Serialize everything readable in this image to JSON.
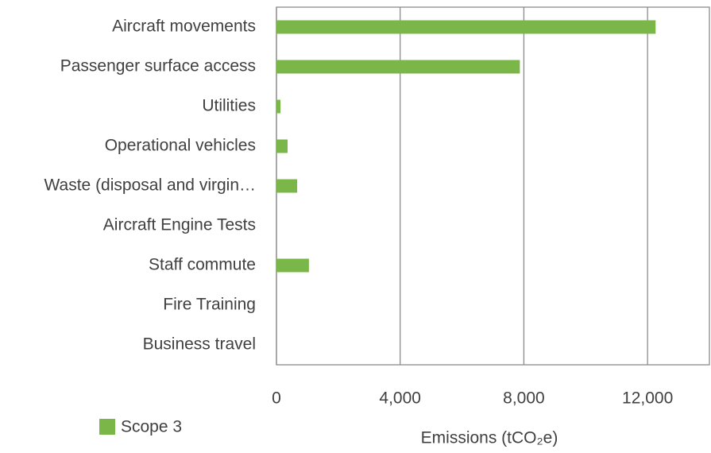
{
  "chart_data": {
    "type": "barh",
    "categories": [
      "Aircraft movements",
      "Passenger surface access",
      "Utilities",
      "Operational vehicles",
      "Waste (disposal and virgin…",
      "Aircraft Engine Tests",
      "Staff commute",
      "Fire Training",
      "Business travel"
    ],
    "series": [
      {
        "name": "Scope 3",
        "color": "#7ab648",
        "values": [
          12260,
          7870,
          130,
          360,
          670,
          0,
          1050,
          0,
          0
        ]
      }
    ],
    "xlabel": "Emissions (tCO₂e)",
    "xlim": [
      0,
      14000
    ],
    "xticks": [
      0,
      {
        "value": 4000,
        "label": "4,000"
      },
      {
        "value": 8000,
        "label": "8,000"
      },
      {
        "value": 12000,
        "label": "12,000"
      }
    ],
    "grid": true,
    "legend": "bottom-left"
  }
}
